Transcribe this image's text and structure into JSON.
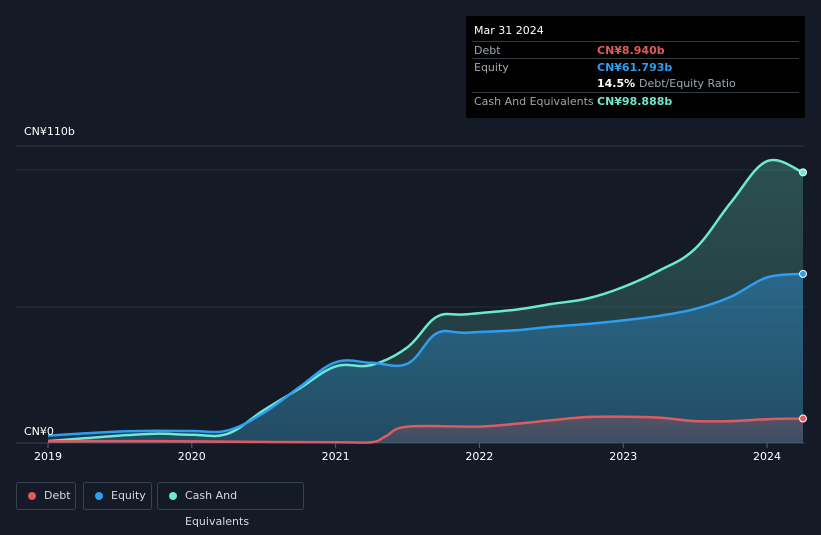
{
  "tooltip": {
    "date": "Mar 31 2024",
    "debt_label": "Debt",
    "debt_value": "CN¥8.940b",
    "equity_label": "Equity",
    "equity_value": "CN¥61.793b",
    "ratio_value": "14.5%",
    "ratio_label": "Debt/Equity Ratio",
    "cash_label": "Cash And Equivalents",
    "cash_value": "CN¥98.888b"
  },
  "legend": [
    {
      "label": "Debt",
      "color": "#e05a5f"
    },
    {
      "label": "Equity",
      "color": "#2d9ef0"
    },
    {
      "label": "Cash And Equivalents",
      "color": "#6de9cf"
    }
  ],
  "chart_data": {
    "type": "area",
    "currency_unit": "CN¥ billions",
    "y_axis_labels": {
      "top": "CN¥110b",
      "bottom": "CN¥0"
    },
    "ylim": [
      0,
      110
    ],
    "xlim": [
      2019.0,
      2024.25
    ],
    "x_ticks": [
      "2019",
      "2020",
      "2021",
      "2022",
      "2023",
      "2024"
    ],
    "grid": true,
    "series": [
      {
        "name": "Cash And Equivalents",
        "color": "#6de9cf",
        "points": [
          [
            2019.0,
            0.7
          ],
          [
            2019.25,
            1.7
          ],
          [
            2019.5,
            2.7
          ],
          [
            2019.75,
            3.4
          ],
          [
            2020.0,
            3.0
          ],
          [
            2020.25,
            3.4
          ],
          [
            2020.5,
            12.0
          ],
          [
            2020.75,
            20.0
          ],
          [
            2021.0,
            28.0
          ],
          [
            2021.25,
            28.5
          ],
          [
            2021.5,
            35.0
          ],
          [
            2021.7,
            46.0
          ],
          [
            2021.9,
            47.0
          ],
          [
            2022.25,
            48.7
          ],
          [
            2022.5,
            50.8
          ],
          [
            2022.75,
            52.8
          ],
          [
            2023.0,
            57.0
          ],
          [
            2023.25,
            63.0
          ],
          [
            2023.5,
            71.0
          ],
          [
            2023.75,
            88.0
          ],
          [
            2024.0,
            103.0
          ],
          [
            2024.25,
            98.9
          ]
        ]
      },
      {
        "name": "Equity",
        "color": "#2d9ef0",
        "points": [
          [
            2019.0,
            2.7
          ],
          [
            2019.25,
            3.5
          ],
          [
            2019.5,
            4.2
          ],
          [
            2019.75,
            4.5
          ],
          [
            2020.0,
            4.4
          ],
          [
            2020.25,
            4.6
          ],
          [
            2020.5,
            11.0
          ],
          [
            2020.75,
            20.5
          ],
          [
            2021.0,
            29.5
          ],
          [
            2021.25,
            29.3
          ],
          [
            2021.5,
            29.0
          ],
          [
            2021.7,
            40.0
          ],
          [
            2021.9,
            40.3
          ],
          [
            2022.25,
            41.2
          ],
          [
            2022.5,
            42.5
          ],
          [
            2022.75,
            43.5
          ],
          [
            2023.0,
            44.8
          ],
          [
            2023.25,
            46.5
          ],
          [
            2023.5,
            49.0
          ],
          [
            2023.75,
            53.5
          ],
          [
            2024.0,
            60.5
          ],
          [
            2024.25,
            61.8
          ]
        ]
      },
      {
        "name": "Debt",
        "color": "#e05a5f",
        "points": [
          [
            2019.0,
            0.6
          ],
          [
            2019.5,
            0.7
          ],
          [
            2020.0,
            0.6
          ],
          [
            2020.5,
            0.4
          ],
          [
            2021.0,
            0.3
          ],
          [
            2021.25,
            0.3
          ],
          [
            2021.35,
            2.5
          ],
          [
            2021.5,
            6.0
          ],
          [
            2022.0,
            6.0
          ],
          [
            2022.25,
            7.0
          ],
          [
            2022.5,
            8.3
          ],
          [
            2022.75,
            9.5
          ],
          [
            2023.0,
            9.6
          ],
          [
            2023.25,
            9.3
          ],
          [
            2023.5,
            8.0
          ],
          [
            2023.75,
            8.0
          ],
          [
            2024.0,
            8.7
          ],
          [
            2024.25,
            8.94
          ]
        ]
      }
    ]
  }
}
